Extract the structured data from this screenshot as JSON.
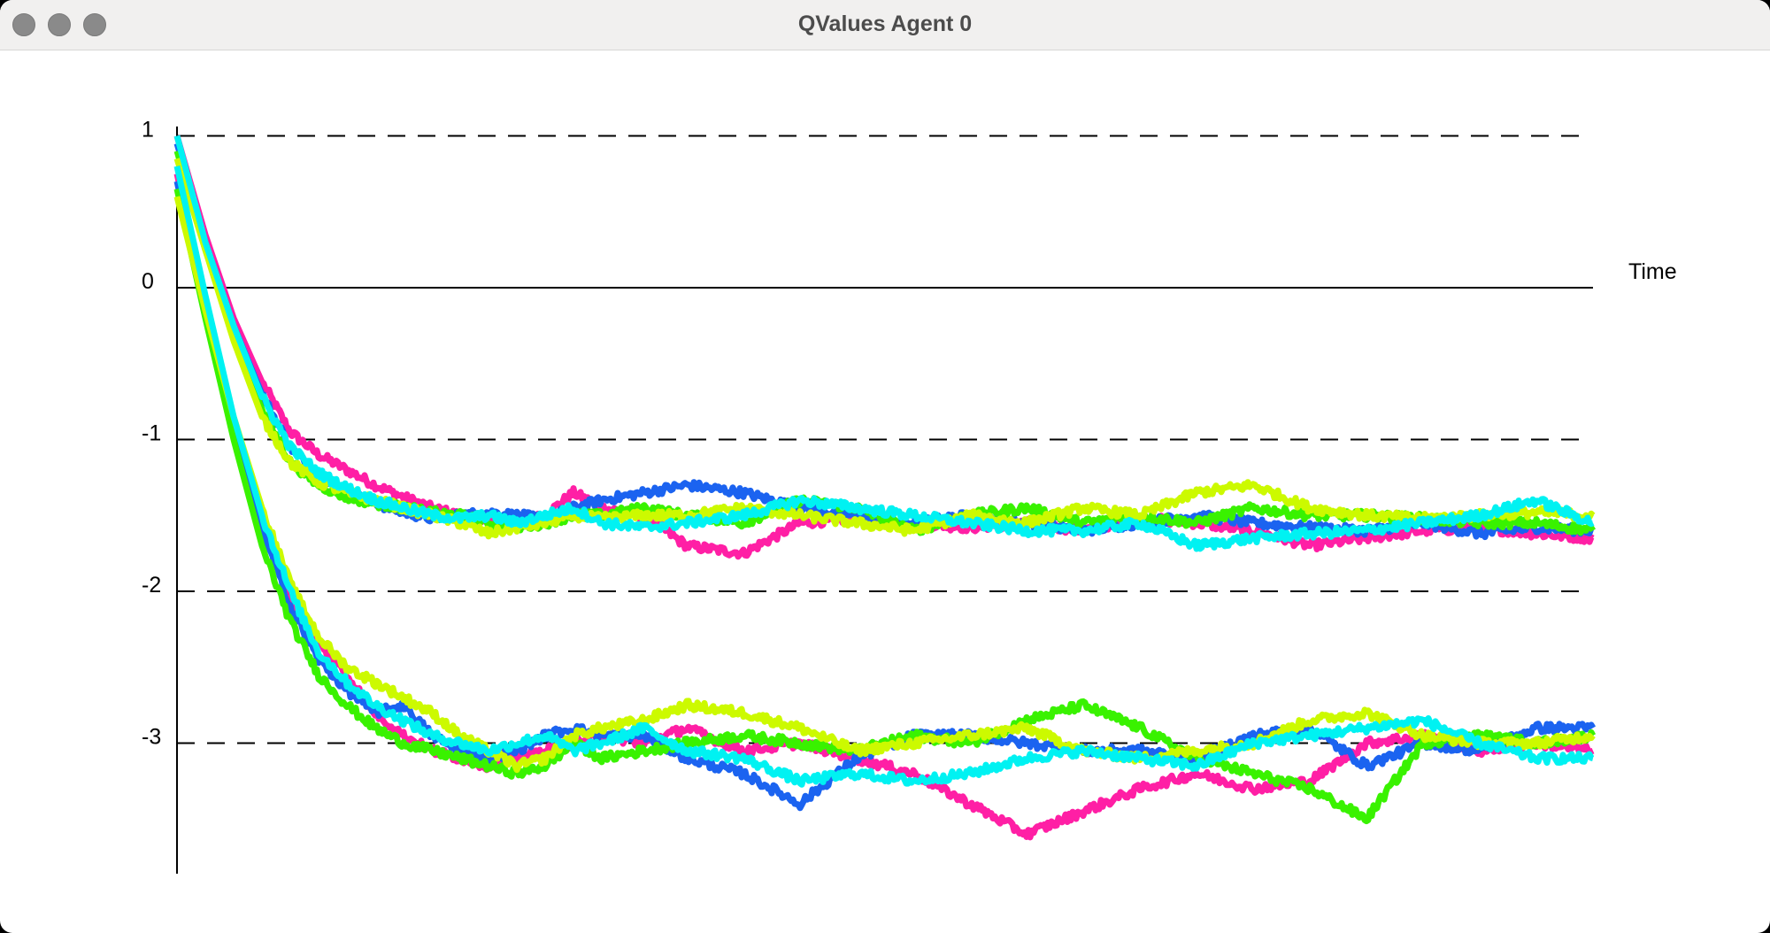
{
  "window": {
    "title": "QValues Agent 0"
  },
  "chart_data": {
    "type": "line",
    "title": "",
    "xlabel": "Time",
    "ylabel": "",
    "ylim": [
      -3.9,
      1.05
    ],
    "yticks": [
      1,
      0,
      -1,
      -2,
      -3
    ],
    "ytick_labels": [
      "1",
      "0",
      "-1",
      "-2",
      "-3"
    ],
    "grid": "dashed horizontal lines at 1, -1, -2, -3; solid line at 0",
    "x": [
      0,
      2,
      4,
      6,
      8,
      10,
      12,
      14,
      16,
      18,
      20,
      22,
      24,
      26,
      28,
      30,
      33,
      36,
      40,
      44,
      48,
      52,
      56,
      60,
      64,
      68,
      72,
      76,
      80,
      84,
      88,
      92,
      96,
      100
    ],
    "series": [
      {
        "color": "#ff1fa5",
        "values": [
          1.0,
          0.35,
          -0.2,
          -0.62,
          -0.95,
          -1.1,
          -1.2,
          -1.3,
          -1.38,
          -1.45,
          -1.5,
          -1.52,
          -1.55,
          -1.5,
          -1.35,
          -1.45,
          -1.5,
          -1.7,
          -1.75,
          -1.55,
          -1.52,
          -1.55,
          -1.58,
          -1.55,
          -1.6,
          -1.52,
          -1.55,
          -1.6,
          -1.7,
          -1.65,
          -1.6,
          -1.58,
          -1.62,
          -1.65
        ]
      },
      {
        "color": "#1b63f0",
        "values": [
          0.95,
          0.3,
          -0.25,
          -0.7,
          -1.05,
          -1.25,
          -1.35,
          -1.42,
          -1.48,
          -1.52,
          -1.5,
          -1.48,
          -1.5,
          -1.52,
          -1.45,
          -1.4,
          -1.35,
          -1.3,
          -1.35,
          -1.45,
          -1.5,
          -1.55,
          -1.5,
          -1.55,
          -1.6,
          -1.55,
          -1.5,
          -1.55,
          -1.58,
          -1.6,
          -1.55,
          -1.62,
          -1.58,
          -1.6
        ]
      },
      {
        "color": "#39f200",
        "values": [
          0.9,
          0.25,
          -0.3,
          -0.8,
          -1.15,
          -1.3,
          -1.38,
          -1.42,
          -1.45,
          -1.48,
          -1.5,
          -1.55,
          -1.58,
          -1.55,
          -1.5,
          -1.5,
          -1.45,
          -1.5,
          -1.55,
          -1.4,
          -1.45,
          -1.6,
          -1.5,
          -1.45,
          -1.55,
          -1.5,
          -1.55,
          -1.45,
          -1.5,
          -1.5,
          -1.52,
          -1.55,
          -1.55,
          -1.6
        ]
      },
      {
        "color": "#ccfa00",
        "values": [
          0.85,
          0.25,
          -0.35,
          -0.85,
          -1.15,
          -1.28,
          -1.35,
          -1.4,
          -1.45,
          -1.5,
          -1.55,
          -1.62,
          -1.58,
          -1.55,
          -1.5,
          -1.52,
          -1.5,
          -1.5,
          -1.45,
          -1.5,
          -1.55,
          -1.6,
          -1.5,
          -1.55,
          -1.45,
          -1.5,
          -1.35,
          -1.3,
          -1.45,
          -1.5,
          -1.52,
          -1.5,
          -1.48,
          -1.5
        ]
      },
      {
        "color": "#00f2f2",
        "values": [
          1.0,
          0.3,
          -0.25,
          -0.72,
          -1.05,
          -1.22,
          -1.32,
          -1.4,
          -1.45,
          -1.5,
          -1.52,
          -1.5,
          -1.55,
          -1.5,
          -1.45,
          -1.55,
          -1.58,
          -1.55,
          -1.5,
          -1.4,
          -1.45,
          -1.5,
          -1.55,
          -1.6,
          -1.6,
          -1.55,
          -1.7,
          -1.65,
          -1.62,
          -1.6,
          -1.55,
          -1.5,
          -1.4,
          -1.55
        ]
      },
      {
        "color": "#ff1fa5",
        "values": [
          0.75,
          -0.1,
          -0.9,
          -1.55,
          -2.05,
          -2.35,
          -2.55,
          -2.8,
          -2.95,
          -3.05,
          -3.1,
          -3.15,
          -3.1,
          -3.05,
          -3.0,
          -2.95,
          -3.0,
          -2.9,
          -3.05,
          -3.0,
          -3.1,
          -3.2,
          -3.4,
          -3.6,
          -3.45,
          -3.3,
          -3.2,
          -3.3,
          -3.25,
          -3.0,
          -2.95,
          -3.05,
          -3.0,
          -3.05
        ]
      },
      {
        "color": "#1b63f0",
        "values": [
          0.7,
          -0.15,
          -0.95,
          -1.6,
          -2.1,
          -2.45,
          -2.65,
          -2.8,
          -2.75,
          -2.95,
          -3.05,
          -3.1,
          -3.05,
          -2.95,
          -2.9,
          -2.95,
          -2.95,
          -3.1,
          -3.2,
          -3.4,
          -3.1,
          -2.95,
          -2.95,
          -3.0,
          -3.05,
          -3.05,
          -3.1,
          -2.95,
          -2.9,
          -3.15,
          -3.0,
          -3.05,
          -2.9,
          -2.9
        ]
      },
      {
        "color": "#39f200",
        "values": [
          0.65,
          -0.2,
          -1.0,
          -1.7,
          -2.2,
          -2.55,
          -2.75,
          -2.9,
          -3.0,
          -3.05,
          -3.1,
          -3.15,
          -3.2,
          -3.15,
          -3.0,
          -3.1,
          -3.05,
          -3.0,
          -2.95,
          -3.0,
          -3.05,
          -2.95,
          -3.0,
          -2.85,
          -2.75,
          -2.9,
          -3.1,
          -3.2,
          -3.3,
          -3.5,
          -3.0,
          -2.95,
          -3.0,
          -2.95
        ]
      },
      {
        "color": "#ccfa00",
        "values": [
          0.6,
          -0.15,
          -0.85,
          -1.45,
          -1.95,
          -2.3,
          -2.5,
          -2.6,
          -2.7,
          -2.8,
          -2.95,
          -3.05,
          -3.15,
          -3.1,
          -2.95,
          -2.9,
          -2.85,
          -2.75,
          -2.8,
          -2.9,
          -3.05,
          -3.0,
          -2.95,
          -2.9,
          -3.05,
          -3.1,
          -3.05,
          -3.0,
          -2.85,
          -2.8,
          -2.95,
          -3.0,
          -3.0,
          -2.95
        ]
      },
      {
        "color": "#00f2f2",
        "values": [
          0.8,
          -0.05,
          -0.85,
          -1.5,
          -2.0,
          -2.4,
          -2.6,
          -2.75,
          -2.85,
          -2.95,
          -3.0,
          -3.05,
          -3.0,
          -2.95,
          -3.05,
          -3.0,
          -2.9,
          -3.05,
          -3.1,
          -3.25,
          -3.2,
          -3.25,
          -3.2,
          -3.1,
          -3.05,
          -3.1,
          -3.15,
          -3.0,
          -2.95,
          -2.9,
          -2.85,
          -3.0,
          -3.1,
          -3.1
        ]
      }
    ]
  }
}
